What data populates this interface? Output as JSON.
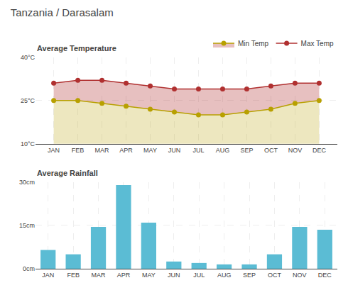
{
  "chart_data": [
    {
      "type": "line",
      "title": "Tanzania / Darasalam",
      "subtitle": "Average Temperature",
      "categories": [
        "JAN",
        "FEB",
        "MAR",
        "APR",
        "MAY",
        "JUN",
        "JUL",
        "AUG",
        "SEP",
        "OCT",
        "NOV",
        "DEC"
      ],
      "series": [
        {
          "name": "Max Temp",
          "color": "#b03030",
          "values": [
            31,
            32,
            32,
            31,
            30,
            29,
            29,
            29,
            29,
            30,
            31,
            31
          ]
        },
        {
          "name": "Min Temp",
          "color": "#b8a000",
          "values": [
            25,
            25,
            24,
            23,
            22,
            21,
            20,
            20,
            21,
            22,
            24,
            25
          ]
        }
      ],
      "ylim": [
        10,
        40
      ],
      "yticks": [
        {
          "value": 10,
          "label": "10°C"
        },
        {
          "value": 25,
          "label": "25°C"
        },
        {
          "value": 40,
          "label": "40°C"
        }
      ],
      "grid": true,
      "legend": "top right",
      "marker": "circle"
    },
    {
      "type": "bar",
      "title": "Average Rainfall",
      "categories": [
        "JAN",
        "FEB",
        "MAR",
        "APR",
        "MAY",
        "JUN",
        "JUL",
        "AUG",
        "SEP",
        "OCT",
        "NOV",
        "DEC"
      ],
      "values": [
        6.5,
        5.0,
        14.5,
        29.0,
        16.0,
        2.5,
        2.0,
        1.5,
        1.5,
        5.0,
        14.5,
        13.5
      ],
      "color": "#5bbcd4",
      "ylim": [
        0,
        30
      ],
      "yticks": [
        {
          "value": 0,
          "label": "0cm"
        },
        {
          "value": 15,
          "label": "15cm"
        },
        {
          "value": 30,
          "label": "30cm"
        }
      ],
      "grid": true
    }
  ]
}
